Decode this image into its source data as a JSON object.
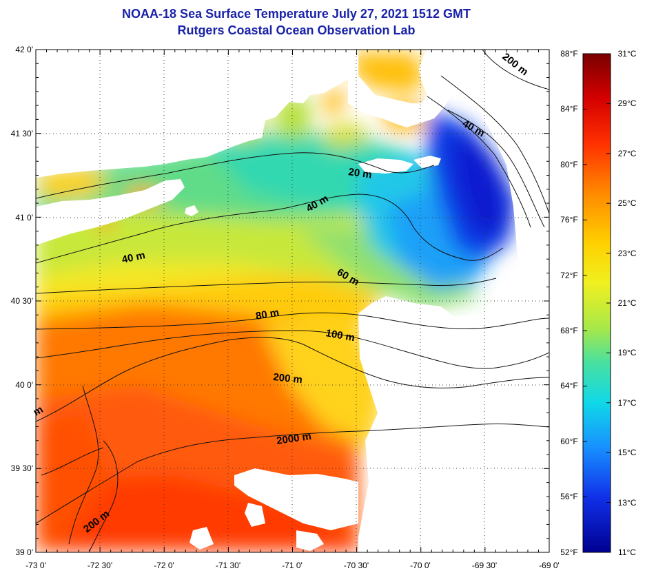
{
  "title": "NOAA-18 Sea Surface Temperature July 27, 2021 1512 GMT",
  "subtitle": "Rutgers Coastal Ocean Observation Lab",
  "map": {
    "lon_range": [
      -73,
      -69
    ],
    "lat_range": [
      39,
      42
    ],
    "lon_labels": [
      "-73 0'",
      "-72 30'",
      "-72 0'",
      "-71 30'",
      "-71 0'",
      "-70 30'",
      "-70 0'",
      "-69 30'",
      "-69 0'"
    ],
    "lat_labels": [
      "42 0'",
      "41 30'",
      "41 0'",
      "40 30'",
      "40 0'",
      "39 30'",
      "39 0'"
    ],
    "grid": "dotted"
  },
  "contour_labels": [
    "200 m",
    "40 m",
    "20 m",
    "40 m",
    "40 m",
    "60 m",
    "80 m",
    "100 m",
    "200 m",
    "2000 m",
    "200 m",
    "m"
  ],
  "colorbar": {
    "fahrenheit": [
      "88°F",
      "84°F",
      "80°F",
      "76°F",
      "72°F",
      "68°F",
      "64°F",
      "60°F",
      "56°F",
      "52°F"
    ],
    "celsius": [
      "31°C",
      "29°C",
      "27°C",
      "25°C",
      "23°C",
      "21°C",
      "19°C",
      "17°C",
      "15°C",
      "13°C",
      "11°C"
    ],
    "colors": [
      "#7a0000",
      "#d40000",
      "#ff3000",
      "#ff8a00",
      "#ffd000",
      "#f0f020",
      "#a8e848",
      "#48e0a0",
      "#10d8e8",
      "#1890ff",
      "#1030e8",
      "#000090"
    ]
  },
  "colors": {
    "title": "#1a23a8",
    "land": "#ffffff",
    "no_data": "#ffffff"
  }
}
